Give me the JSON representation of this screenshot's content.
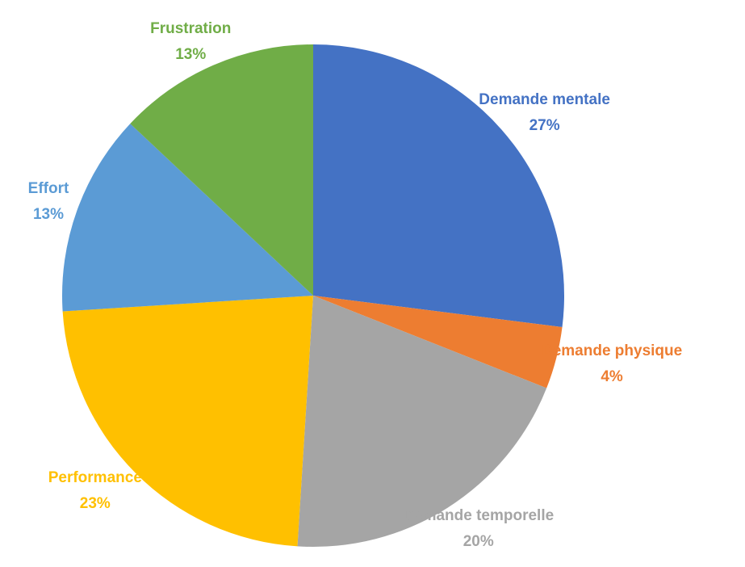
{
  "chart_data": {
    "type": "pie",
    "categories": [
      "Demande mentale",
      "Demande physique",
      "Demande temporelle",
      "Performance",
      "Effort",
      "Frustration"
    ],
    "values": [
      27,
      4,
      20,
      23,
      13,
      13
    ],
    "value_labels": [
      "27%",
      "4%",
      "20%",
      "23%",
      "13%",
      "13%"
    ],
    "colors": [
      "#4472c4",
      "#ed7d31",
      "#a5a5a5",
      "#ffc000",
      "#5b9bd5",
      "#70ad47"
    ]
  }
}
